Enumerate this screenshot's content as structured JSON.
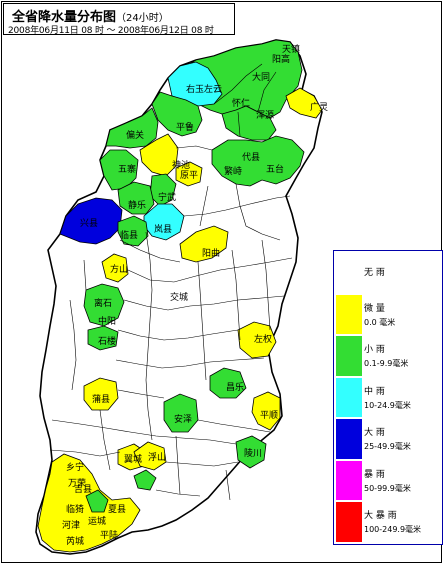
{
  "title": {
    "main": "全省降水量分布图",
    "period": "（24小时）",
    "time_range": "2008年06月11日 08 时 ～ 2008年06月12日 08 时"
  },
  "legend": [
    {
      "name": "无 雨",
      "range": "",
      "color": "#ffffff"
    },
    {
      "name": "微 量",
      "range": "0.0 毫米",
      "color": "#ffff00"
    },
    {
      "name": "小 雨",
      "range": "0.1-9.9毫米",
      "color": "#33dd33"
    },
    {
      "name": "中 雨",
      "range": "10-24.9毫米",
      "color": "#33ffff"
    },
    {
      "name": "大 雨",
      "range": "25-49.9毫米",
      "color": "#0000dd"
    },
    {
      "name": "暴 雨",
      "range": "50-99.9毫米",
      "color": "#ff00ff"
    },
    {
      "name": "大 暴 雨",
      "range": "100-249.9毫米",
      "color": "#ff0000"
    }
  ],
  "colors": {
    "none": "#ffffff",
    "trace": "#ffff00",
    "light": "#33dd33",
    "moderate": "#33ffff",
    "heavy": "#0000dd",
    "rainstorm": "#ff00ff",
    "heavy_rainstorm": "#ff0000",
    "boundary": "#000000"
  },
  "county_labels": [
    "天镇",
    "阳高",
    "大同",
    "右玉左云",
    "怀仁",
    "浑源",
    "广灵",
    "偏关",
    "平鲁",
    "神池",
    "五寨",
    "代县",
    "五台",
    "繁峙",
    "宁武",
    "原平",
    "静乐",
    "兴县",
    "岚县",
    "临县",
    "方山",
    "离石",
    "中阳",
    "阳曲",
    "石楼",
    "交城",
    "左权",
    "昌乐",
    "平顺",
    "陵川",
    "浮山",
    "安泽",
    "乡宁",
    "蒲县",
    "翼城",
    "吉县",
    "芮城",
    "万荣",
    "临猗",
    "运城",
    "夏县",
    "平陆",
    "河津"
  ]
}
